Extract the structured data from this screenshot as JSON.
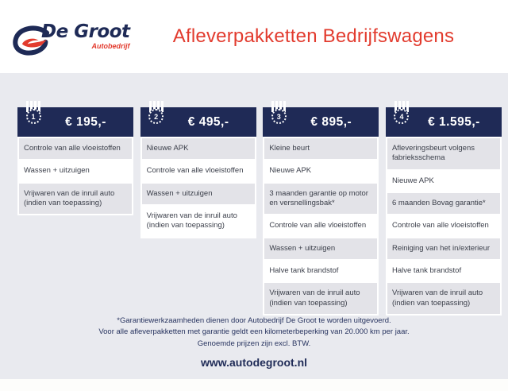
{
  "brand": {
    "name": "De Groot",
    "subtitle": "Autobedrijf"
  },
  "header": {
    "title": "Afleverpakketten Bedrijfswagens"
  },
  "packages": [
    {
      "rank": "1",
      "price": "€ 195,-",
      "items": [
        "Controle van alle vloeistoffen",
        "Wassen + uitzuigen",
        "Vrijwaren van de inruil auto (indien van toepassing)"
      ]
    },
    {
      "rank": "2",
      "price": "€ 495,-",
      "items": [
        "Nieuwe APK",
        "Controle van alle vloeistoffen",
        "Wassen + uitzuigen",
        "Vrijwaren van de inruil auto (indien van toepassing)"
      ]
    },
    {
      "rank": "3",
      "price": "€ 895,-",
      "items": [
        "Kleine beurt",
        "Nieuwe APK",
        "3 maanden garantie op motor en versnellingsbak*",
        "Controle van alle vloeistoffen",
        "Wassen + uitzuigen",
        "Halve tank brandstof",
        "Vrijwaren van de inruil auto (indien van toepassing)"
      ]
    },
    {
      "rank": "4",
      "price": "€ 1.595,-",
      "items": [
        "Afleveringsbeurt volgens fabrieksschema",
        "Nieuwe APK",
        "6 maanden Bovag garantie*",
        "Controle van alle vloeistoffen",
        "Reiniging van het in/exterieur",
        "Halve tank brandstof",
        "Vrijwaren van de inruil auto (indien van toepassing)"
      ]
    }
  ],
  "footer": {
    "notes": [
      "*Garantiewerkzaamheden dienen door Autobedrijf De Groot te worden uitgevoerd.",
      "Voor alle afleverpakketten met garantie geldt een kilometerbeperking van 20.000 km per jaar.",
      "Genoemde prijzen zijn excl. BTW."
    ],
    "website": "www.autodegroot.nl"
  },
  "colors": {
    "navy": "#1f2a56",
    "red": "#e23b2e",
    "page_background": "#e9eaef",
    "item_gray": "#e3e3e8"
  }
}
